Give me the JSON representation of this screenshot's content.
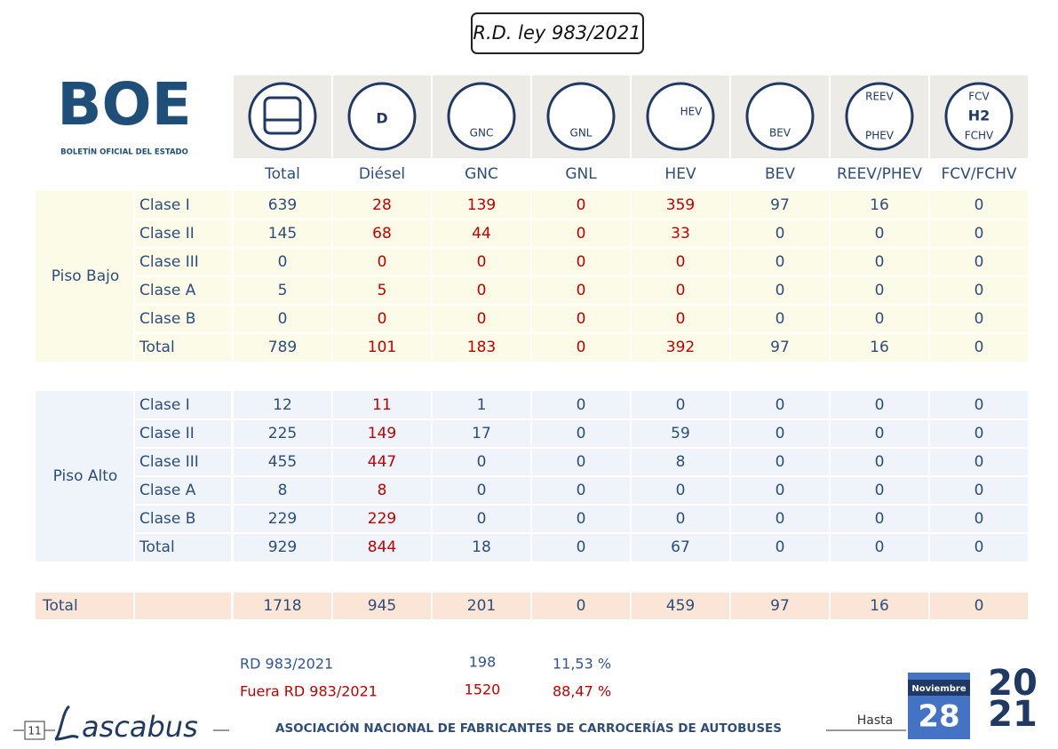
{
  "title": "R.D. ley 983/2021",
  "logo": {
    "name": "BOE",
    "subtitle": "BOLETÍN OFICIAL DEL ESTADO"
  },
  "columns": [
    {
      "label": "Total",
      "icon": []
    },
    {
      "label": "Diésel",
      "icon": [
        "D"
      ]
    },
    {
      "label": "GNC",
      "icon": [
        "GNC"
      ]
    },
    {
      "label": "GNL",
      "icon": [
        "GNL"
      ]
    },
    {
      "label": "HEV",
      "icon": [
        "HEV"
      ]
    },
    {
      "label": "BEV",
      "icon": [
        "BEV"
      ]
    },
    {
      "label": "REEV/PHEV",
      "icon": [
        "REEV",
        "PHEV"
      ]
    },
    {
      "label": "FCV/FCHV",
      "icon": [
        "FCV",
        "H2",
        "FCHV"
      ]
    }
  ],
  "groups": [
    {
      "label": "Piso Bajo",
      "background": "#fbfbe8",
      "value_colors": [
        "#2e4d7b",
        "#c00000",
        "#c00000",
        "#c00000",
        "#c00000",
        "#2e4d7b",
        "#2e4d7b",
        "#2e4d7b"
      ],
      "rows": [
        {
          "label": "Clase I",
          "values": [
            639,
            28,
            139,
            0,
            359,
            97,
            16,
            0
          ]
        },
        {
          "label": "Clase II",
          "values": [
            145,
            68,
            44,
            0,
            33,
            0,
            0,
            0
          ]
        },
        {
          "label": "Clase III",
          "values": [
            0,
            0,
            0,
            0,
            0,
            0,
            0,
            0
          ]
        },
        {
          "label": "Clase A",
          "values": [
            5,
            5,
            0,
            0,
            0,
            0,
            0,
            0
          ]
        },
        {
          "label": "Clase B",
          "values": [
            0,
            0,
            0,
            0,
            0,
            0,
            0,
            0
          ]
        },
        {
          "label": "Total",
          "values": [
            789,
            101,
            183,
            0,
            392,
            97,
            16,
            0
          ]
        }
      ]
    },
    {
      "label": "Piso Alto",
      "background": "#eef4fa",
      "value_colors": [
        "#2e4d7b",
        "#c00000",
        "#2e4d7b",
        "#2e4d7b",
        "#2e4d7b",
        "#2e4d7b",
        "#2e4d7b",
        "#2e4d7b"
      ],
      "rows": [
        {
          "label": "Clase I",
          "values": [
            12,
            11,
            1,
            0,
            0,
            0,
            0,
            0
          ]
        },
        {
          "label": "Clase II",
          "values": [
            225,
            149,
            17,
            0,
            59,
            0,
            0,
            0
          ]
        },
        {
          "label": "Clase III",
          "values": [
            455,
            447,
            0,
            0,
            8,
            0,
            0,
            0
          ]
        },
        {
          "label": "Clase A",
          "values": [
            8,
            8,
            0,
            0,
            0,
            0,
            0,
            0
          ]
        },
        {
          "label": "Clase B",
          "values": [
            229,
            229,
            0,
            0,
            0,
            0,
            0,
            0
          ]
        },
        {
          "label": "Total",
          "values": [
            929,
            844,
            18,
            0,
            67,
            0,
            0,
            0
          ]
        }
      ]
    }
  ],
  "total": {
    "label": "Total",
    "background": "#fbe5d6",
    "values": [
      1718,
      945,
      201,
      0,
      459,
      97,
      16,
      0
    ]
  },
  "summary": [
    {
      "label": "RD 983/2021",
      "count": 198,
      "share": "11,53 %",
      "color": "#2e5597"
    },
    {
      "label": "Fuera RD 983/2021",
      "count": 1520,
      "share": "88,47 %",
      "color": "#c00000"
    }
  ],
  "footer": {
    "page": "11",
    "brand": "ascabus",
    "association": "ASOCIACIÓN NACIONAL DE FABRICANTES DE CARROCERÍAS DE AUTOBUSES",
    "until": "Hasta",
    "month": "Noviembre",
    "day": "28",
    "year": [
      "20",
      "21"
    ]
  }
}
